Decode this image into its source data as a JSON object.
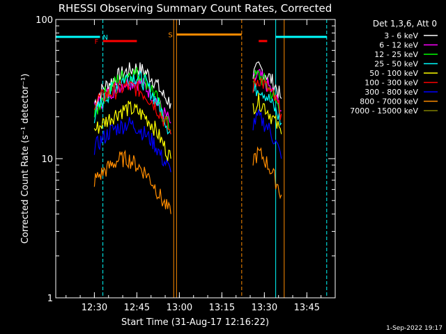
{
  "chart_data": {
    "type": "line",
    "title": "RHESSI Observing Summary Count Rates, Corrected",
    "xlabel": "Start Time (31-Aug-17 12:16:22)",
    "ylabel": "Corrected Count Rate (s⁻¹ detector⁻¹)",
    "yscale": "log",
    "xlim": [
      "12:16:22",
      "13:55:00"
    ],
    "ylim": [
      1,
      100
    ],
    "x_ticks": [
      "12:30",
      "12:45",
      "13:00",
      "13:15",
      "13:30",
      "13:45"
    ],
    "y_ticks": [
      "1",
      "10",
      "100"
    ],
    "legend_title": "Det 1,3,6, Att 0",
    "legend_position": "top-right",
    "series": [
      {
        "name": "3 - 6 keV",
        "color": "#ffffff",
        "segments": [
          {
            "x": [
              "12:30",
              "12:33",
              "12:36",
              "12:39",
              "12:42",
              "12:45",
              "12:48",
              "12:51",
              "12:54",
              "12:57"
            ],
            "y": [
              25,
              32,
              36,
              40,
              43,
              45,
              42,
              37,
              29,
              25
            ]
          },
          {
            "x": [
              "13:26",
              "13:28",
              "13:30",
              "13:32",
              "13:34",
              "13:36"
            ],
            "y": [
              40,
              45,
              42,
              38,
              33,
              27
            ]
          }
        ]
      },
      {
        "name": "6 - 12 keV",
        "color": "#ff00ff",
        "segments": [
          {
            "x": [
              "12:30",
              "12:33",
              "12:36",
              "12:39",
              "12:42",
              "12:45",
              "12:48",
              "12:51",
              "12:54",
              "12:57"
            ],
            "y": [
              23,
              27,
              31,
              34,
              36,
              36,
              33,
              28,
              22,
              18
            ]
          },
          {
            "x": [
              "13:26",
              "13:28",
              "13:30",
              "13:32",
              "13:34",
              "13:36"
            ],
            "y": [
              36,
              40,
              36,
              32,
              27,
              22
            ]
          }
        ]
      },
      {
        "name": "12 - 25 keV",
        "color": "#00ff00",
        "segments": [
          {
            "x": [
              "12:30",
              "12:33",
              "12:36",
              "12:39",
              "12:42",
              "12:45",
              "12:48",
              "12:51",
              "12:54",
              "12:57"
            ],
            "y": [
              20,
              28,
              33,
              38,
              41,
              41,
              37,
              30,
              21,
              16
            ]
          },
          {
            "x": [
              "13:26",
              "13:28",
              "13:30",
              "13:32",
              "13:34",
              "13:36"
            ],
            "y": [
              38,
              40,
              36,
              31,
              26,
              21
            ]
          }
        ]
      },
      {
        "name": "25 - 50 keV",
        "color": "#00ffff",
        "segments": [
          {
            "x": [
              "12:30",
              "12:33",
              "12:36",
              "12:39",
              "12:42",
              "12:45",
              "12:48",
              "12:51",
              "12:54",
              "12:57"
            ],
            "y": [
              20,
              26,
              31,
              36,
              39,
              39,
              35,
              28,
              21,
              15
            ]
          },
          {
            "x": [
              "13:26",
              "13:28",
              "13:30",
              "13:32",
              "13:34",
              "13:36"
            ],
            "y": [
              30,
              33,
              30,
              26,
              22,
              18
            ]
          }
        ]
      },
      {
        "name": "50 - 100 keV",
        "color": "#ffff00",
        "segments": [
          {
            "x": [
              "12:30",
              "12:33",
              "12:36",
              "12:39",
              "12:42",
              "12:45",
              "12:48",
              "12:51",
              "12:54",
              "12:57"
            ],
            "y": [
              16,
              18,
              20,
              22,
              23,
              22,
              20,
              17,
              13,
              10
            ]
          },
          {
            "x": [
              "13:26",
              "13:28",
              "13:30",
              "13:32",
              "13:34",
              "13:36"
            ],
            "y": [
              24,
              26,
              24,
              21,
              18,
              15
            ]
          }
        ]
      },
      {
        "name": "100 - 300 keV",
        "color": "#ff0000",
        "segments": [
          {
            "x": [
              "12:30",
              "12:33",
              "12:36",
              "12:39",
              "12:42",
              "12:45",
              "12:48",
              "12:51",
              "12:54",
              "12:57"
            ],
            "y": [
              26,
              28,
              30,
              32,
              33,
              32,
              29,
              25,
              20,
              15
            ]
          },
          {
            "x": [
              "13:26",
              "13:28",
              "13:30",
              "13:32",
              "13:34",
              "13:36"
            ],
            "y": [
              33,
              38,
              34,
              30,
              26,
              21
            ]
          }
        ]
      },
      {
        "name": "300 - 800 keV",
        "color": "#0000ff",
        "segments": [
          {
            "x": [
              "12:30",
              "12:33",
              "12:36",
              "12:39",
              "12:42",
              "12:45",
              "12:48",
              "12:51",
              "12:54",
              "12:57"
            ],
            "y": [
              12,
              14,
              16,
              17,
              18,
              17,
              15,
              13,
              10,
              8
            ]
          },
          {
            "x": [
              "13:26",
              "13:28",
              "13:30",
              "13:32",
              "13:34",
              "13:36"
            ],
            "y": [
              18,
              20,
              18,
              16,
              13,
              10
            ]
          }
        ]
      },
      {
        "name": "800 - 7000 keV",
        "color": "#ff8c00",
        "segments": [
          {
            "x": [
              "12:30",
              "12:33",
              "12:36",
              "12:39",
              "12:42",
              "12:45",
              "12:48",
              "12:51",
              "12:54",
              "12:57"
            ],
            "y": [
              7,
              8,
              9,
              10,
              10,
              9,
              8,
              6.5,
              5,
              4
            ]
          },
          {
            "x": [
              "13:26",
              "13:28",
              "13:30",
              "13:32",
              "13:34",
              "13:36"
            ],
            "y": [
              10,
              11,
              10,
              8.5,
              7,
              5.5
            ]
          }
        ]
      },
      {
        "name": "7000 - 15000 keV",
        "color": "#808000",
        "segments": []
      }
    ],
    "flag_bars": [
      {
        "label": "N",
        "color": "#00ffff",
        "y": 75,
        "segments": [
          [
            "12:16:22",
            "12:32"
          ],
          [
            "13:34",
            "13:52"
          ]
        ]
      },
      {
        "label": "F",
        "color": "#ff0000",
        "y": 70,
        "segments": [
          [
            "12:33",
            "12:45"
          ],
          [
            "13:28",
            "13:31"
          ]
        ]
      },
      {
        "label": "S",
        "color": "#ff8c00",
        "y": 78,
        "segments": [
          [
            "12:59",
            "13:22"
          ]
        ]
      }
    ],
    "vertical_lines": [
      {
        "x": "12:16:22",
        "color": "#00ffff",
        "style": "solid"
      },
      {
        "x": "12:33",
        "color": "#00ffff",
        "style": "dashed"
      },
      {
        "x": "12:58",
        "color": "#ff8c00",
        "style": "solid"
      },
      {
        "x": "12:59",
        "color": "#ff8c00",
        "style": "solid"
      },
      {
        "x": "13:22",
        "color": "#ff8c00",
        "style": "dashed"
      },
      {
        "x": "13:34",
        "color": "#00ffff",
        "style": "solid"
      },
      {
        "x": "13:37",
        "color": "#ff8c00",
        "style": "solid"
      },
      {
        "x": "13:52",
        "color": "#00ffff",
        "style": "dashed"
      }
    ]
  },
  "footer": {
    "timestamp": "1-Sep-2022 19:17"
  }
}
